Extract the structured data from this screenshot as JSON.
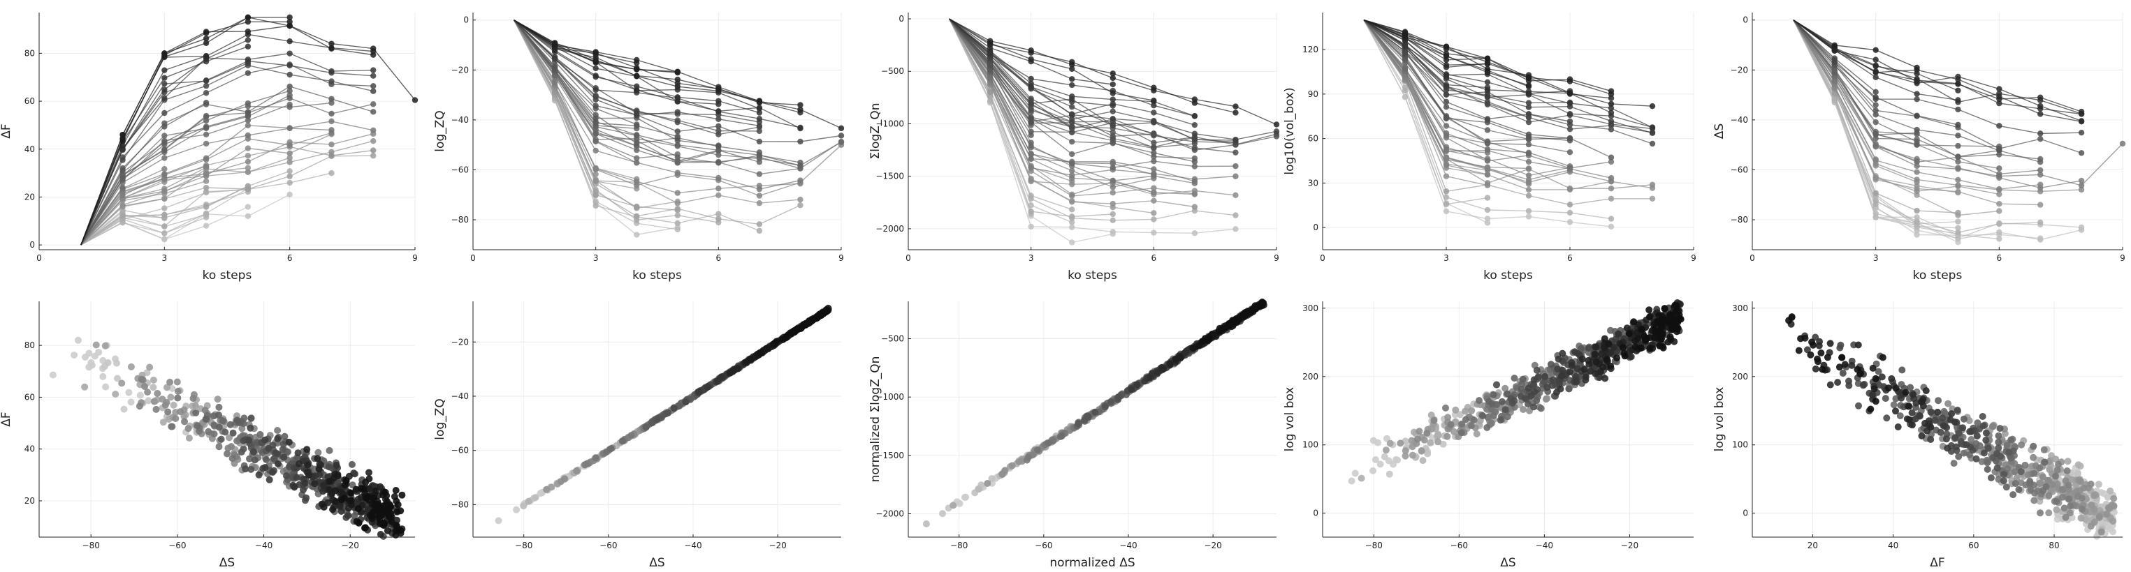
{
  "chart_data": [
    {
      "type": "line",
      "xlabel": "ko steps",
      "ylabel": "ΔF",
      "xlim": [
        0,
        9
      ],
      "ylim": [
        -2,
        97
      ],
      "xticks": [
        0,
        3,
        6,
        9
      ],
      "yticks": [
        0,
        20,
        40,
        60,
        80
      ],
      "grid": true,
      "legend": "none",
      "trend": {
        "x": [
          1,
          2,
          3,
          4,
          5,
          6,
          7,
          8,
          9
        ],
        "y": [
          0,
          9,
          16,
          22,
          27,
          31,
          35,
          38,
          40
        ]
      },
      "per_step_range": {
        "x": [
          2,
          3,
          4,
          5,
          6,
          7,
          8,
          9
        ],
        "min": [
          8,
          2,
          8,
          12,
          18,
          25,
          26,
          35
        ],
        "max": [
          46,
          80,
          89,
          95,
          95,
          84,
          82,
          62
        ]
      },
      "n_series": 50
    },
    {
      "type": "line",
      "xlabel": "ko steps",
      "ylabel": "log_ZQ",
      "xlim": [
        0,
        9
      ],
      "ylim": [
        -92,
        3
      ],
      "xticks": [
        0,
        3,
        6,
        9
      ],
      "yticks": [
        0,
        -20,
        -40,
        -60,
        -80
      ],
      "grid": true,
      "legend": "none",
      "trend": {
        "x": [
          1,
          2,
          3,
          4,
          5,
          6,
          7,
          8,
          9
        ],
        "y": [
          0,
          -10,
          -20,
          -27,
          -33,
          -39,
          -45,
          -50,
          -55
        ]
      },
      "per_step_range": {
        "x": [
          2,
          3,
          4,
          5,
          6,
          7,
          8,
          9
        ],
        "min": [
          -33,
          -79,
          -86,
          -89,
          -88,
          -88,
          -85,
          -55
        ],
        "max": [
          -9,
          -12,
          -16,
          -20,
          -24,
          -28,
          -34,
          -42
        ]
      },
      "n_series": 50
    },
    {
      "type": "line",
      "xlabel": "ko steps",
      "ylabel": "ΣlogZ_Qn",
      "xlim": [
        0,
        9
      ],
      "ylim": [
        -2200,
        60
      ],
      "xticks": [
        0,
        3,
        6,
        9
      ],
      "yticks": [
        0,
        -500,
        -1000,
        -1500,
        -2000
      ],
      "grid": true,
      "legend": "none",
      "trend": {
        "x": [
          1,
          2,
          3,
          4,
          5,
          6,
          7,
          8,
          9
        ],
        "y": [
          0,
          -250,
          -480,
          -650,
          -800,
          -950,
          -1100,
          -1220,
          -1330
        ]
      },
      "per_step_range": {
        "x": [
          2,
          3,
          4,
          5,
          6,
          7,
          8,
          9
        ],
        "min": [
          -800,
          -1980,
          -2130,
          -2130,
          -2100,
          -2080,
          -2020,
          -1300
        ],
        "max": [
          -200,
          -300,
          -400,
          -500,
          -600,
          -700,
          -820,
          -1000
        ]
      },
      "n_series": 50
    },
    {
      "type": "line",
      "xlabel": "ko steps",
      "ylabel": "log10(vol_box)",
      "xlim": [
        0,
        9
      ],
      "ylim": [
        -15,
        145
      ],
      "xticks": [
        0,
        3,
        6,
        9
      ],
      "yticks": [
        0,
        30,
        60,
        90,
        120
      ],
      "grid": true,
      "legend": "none",
      "trend": {
        "x": [
          1,
          2,
          3,
          4,
          5,
          6,
          7,
          8,
          9
        ],
        "y": [
          140,
          125,
          110,
          100,
          92,
          84,
          77,
          70,
          64
        ]
      },
      "per_step_range": {
        "x": [
          2,
          3,
          4,
          5,
          6,
          7,
          8,
          9
        ],
        "min": [
          88,
          8,
          2,
          0,
          0,
          0,
          0,
          0
        ],
        "max": [
          132,
          122,
          114,
          107,
          100,
          92,
          87,
          74
        ]
      },
      "n_series": 50
    },
    {
      "type": "line",
      "xlabel": "ko steps",
      "ylabel": "ΔS",
      "xlim": [
        0,
        9
      ],
      "ylim": [
        -92,
        3
      ],
      "xticks": [
        0,
        3,
        6,
        9
      ],
      "yticks": [
        0,
        -20,
        -40,
        -60,
        -80
      ],
      "grid": true,
      "legend": "none",
      "trend": {
        "x": [
          1,
          2,
          3,
          4,
          5,
          6,
          7,
          8,
          9
        ],
        "y": [
          0,
          -10,
          -20,
          -27,
          -33,
          -39,
          -45,
          -50,
          -55
        ]
      },
      "per_step_range": {
        "x": [
          2,
          3,
          4,
          5,
          6,
          7,
          8,
          9
        ],
        "min": [
          -33,
          -79,
          -86,
          -89,
          -88,
          -88,
          -85,
          -55
        ],
        "max": [
          -9,
          -12,
          -16,
          -20,
          -24,
          -28,
          -34,
          -42
        ]
      },
      "n_series": 50
    },
    {
      "type": "scatter",
      "xlabel": "ΔS",
      "ylabel": "ΔF",
      "xlim": [
        -92,
        -5
      ],
      "ylim": [
        6,
        97
      ],
      "xticks": [
        -80,
        -60,
        -40,
        -20
      ],
      "yticks": [
        20,
        40,
        60,
        80
      ],
      "grid": true,
      "legend": "none",
      "relation": {
        "slope": -0.85,
        "intercept": 5,
        "spread": 7
      },
      "x_range": [
        -90,
        -8
      ],
      "n_points": 700
    },
    {
      "type": "scatter",
      "xlabel": "ΔS",
      "ylabel": "log_ZQ",
      "xlim": [
        -92,
        -5
      ],
      "ylim": [
        -92,
        -5
      ],
      "xticks": [
        -80,
        -60,
        -40,
        -20
      ],
      "yticks": [
        -20,
        -40,
        -60,
        -80
      ],
      "grid": true,
      "legend": "none",
      "relation": {
        "slope": 1,
        "intercept": 0,
        "spread": 0.3
      },
      "x_range": [
        -90,
        -8
      ],
      "n_points": 600
    },
    {
      "type": "scatter",
      "xlabel": "normalized ΔS",
      "ylabel": "normalized ΣlogZ_Qn",
      "xlim": [
        -92,
        -5
      ],
      "ylim": [
        -2200,
        -180
      ],
      "xticks": [
        -80,
        -60,
        -40,
        -20
      ],
      "yticks": [
        -500,
        -1000,
        -1500,
        -2000
      ],
      "grid": true,
      "legend": "none",
      "relation": {
        "slope": 23.7,
        "intercept": 0,
        "spread": 15
      },
      "x_range": [
        -90,
        -8
      ],
      "n_points": 600
    },
    {
      "type": "scatter",
      "xlabel": "ΔS",
      "ylabel": "log vol box",
      "xlim": [
        -92,
        -5
      ],
      "ylim": [
        -35,
        310
      ],
      "xticks": [
        -80,
        -60,
        -40,
        -20
      ],
      "yticks": [
        0,
        100,
        200,
        300
      ],
      "grid": true,
      "legend": "none",
      "relation": {
        "slope": 3.0,
        "intercept": 310,
        "spread": 20
      },
      "x_range": [
        -90,
        -8
      ],
      "n_points": 700
    },
    {
      "type": "scatter",
      "xlabel": "ΔF",
      "ylabel": "log vol box",
      "xlim": [
        5,
        97
      ],
      "ylim": [
        -35,
        310
      ],
      "xticks": [
        20,
        40,
        60,
        80
      ],
      "yticks": [
        0,
        100,
        200,
        300
      ],
      "grid": true,
      "legend": "none",
      "relation": {
        "slope": -3.3,
        "intercept": 305,
        "spread": 28
      },
      "x_range": [
        8,
        95
      ],
      "n_points": 700
    }
  ],
  "colors": {
    "axis": "#222222",
    "grid": "#ececec",
    "line_dark": "#1a1a1a",
    "line_light": "#d2d2d2",
    "point_dark": "#0f0f0f",
    "point_light": "#cccccc"
  }
}
